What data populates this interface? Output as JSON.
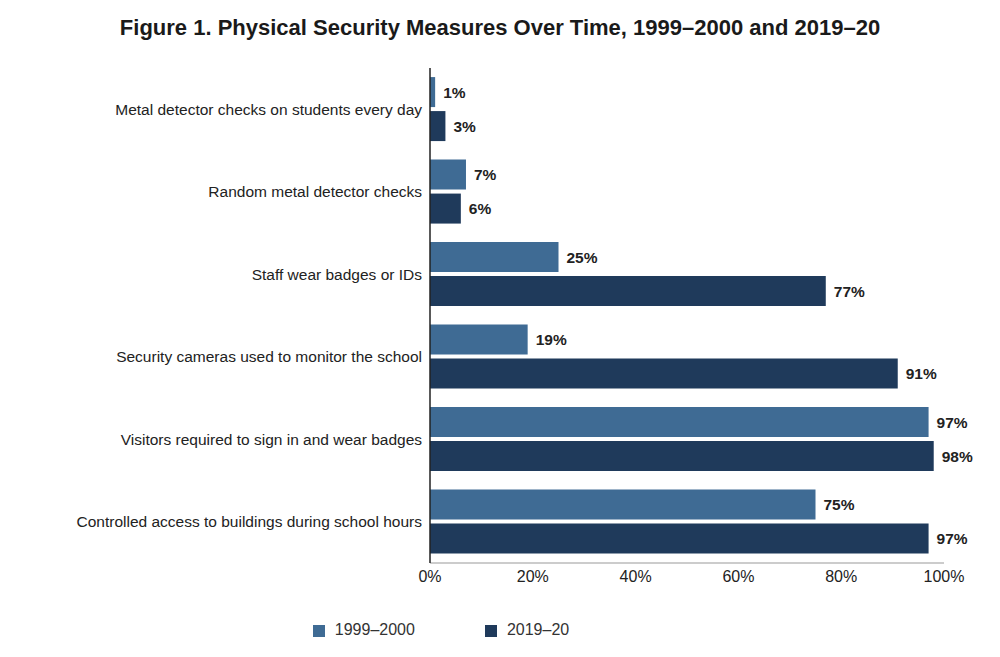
{
  "chart_data": {
    "type": "bar",
    "title": "Figure 1. Physical Security Measures Over Time, 1999–2000 and 2019–20",
    "orientation": "horizontal",
    "categories": [
      "Metal detector checks on students every day",
      "Random metal detector checks",
      "Staff wear badges or IDs",
      "Security cameras used to monitor the school",
      "Visitors required to sign in and wear badges",
      "Controlled access to buildings during school hours"
    ],
    "series": [
      {
        "name": "1999–2000",
        "color": "#3f6b94",
        "values": [
          1,
          7,
          25,
          19,
          97,
          75
        ],
        "value_labels": [
          "1%",
          "7%",
          "25%",
          "19%",
          "97%",
          "75%"
        ]
      },
      {
        "name": "2019–20",
        "color": "#1f3a5b",
        "values": [
          3,
          6,
          77,
          91,
          98,
          97
        ],
        "value_labels": [
          "3%",
          "6%",
          "77%",
          "91%",
          "98%",
          "97%"
        ]
      }
    ],
    "xlim": [
      0,
      100
    ],
    "xticks": [
      {
        "value": 0,
        "label": "0%"
      },
      {
        "value": 20,
        "label": "20%"
      },
      {
        "value": 40,
        "label": "40%"
      },
      {
        "value": 60,
        "label": "60%"
      },
      {
        "value": 80,
        "label": "80%"
      },
      {
        "value": 100,
        "label": "100%"
      }
    ],
    "data_labels": true,
    "grid": false,
    "legend": "bottom"
  }
}
